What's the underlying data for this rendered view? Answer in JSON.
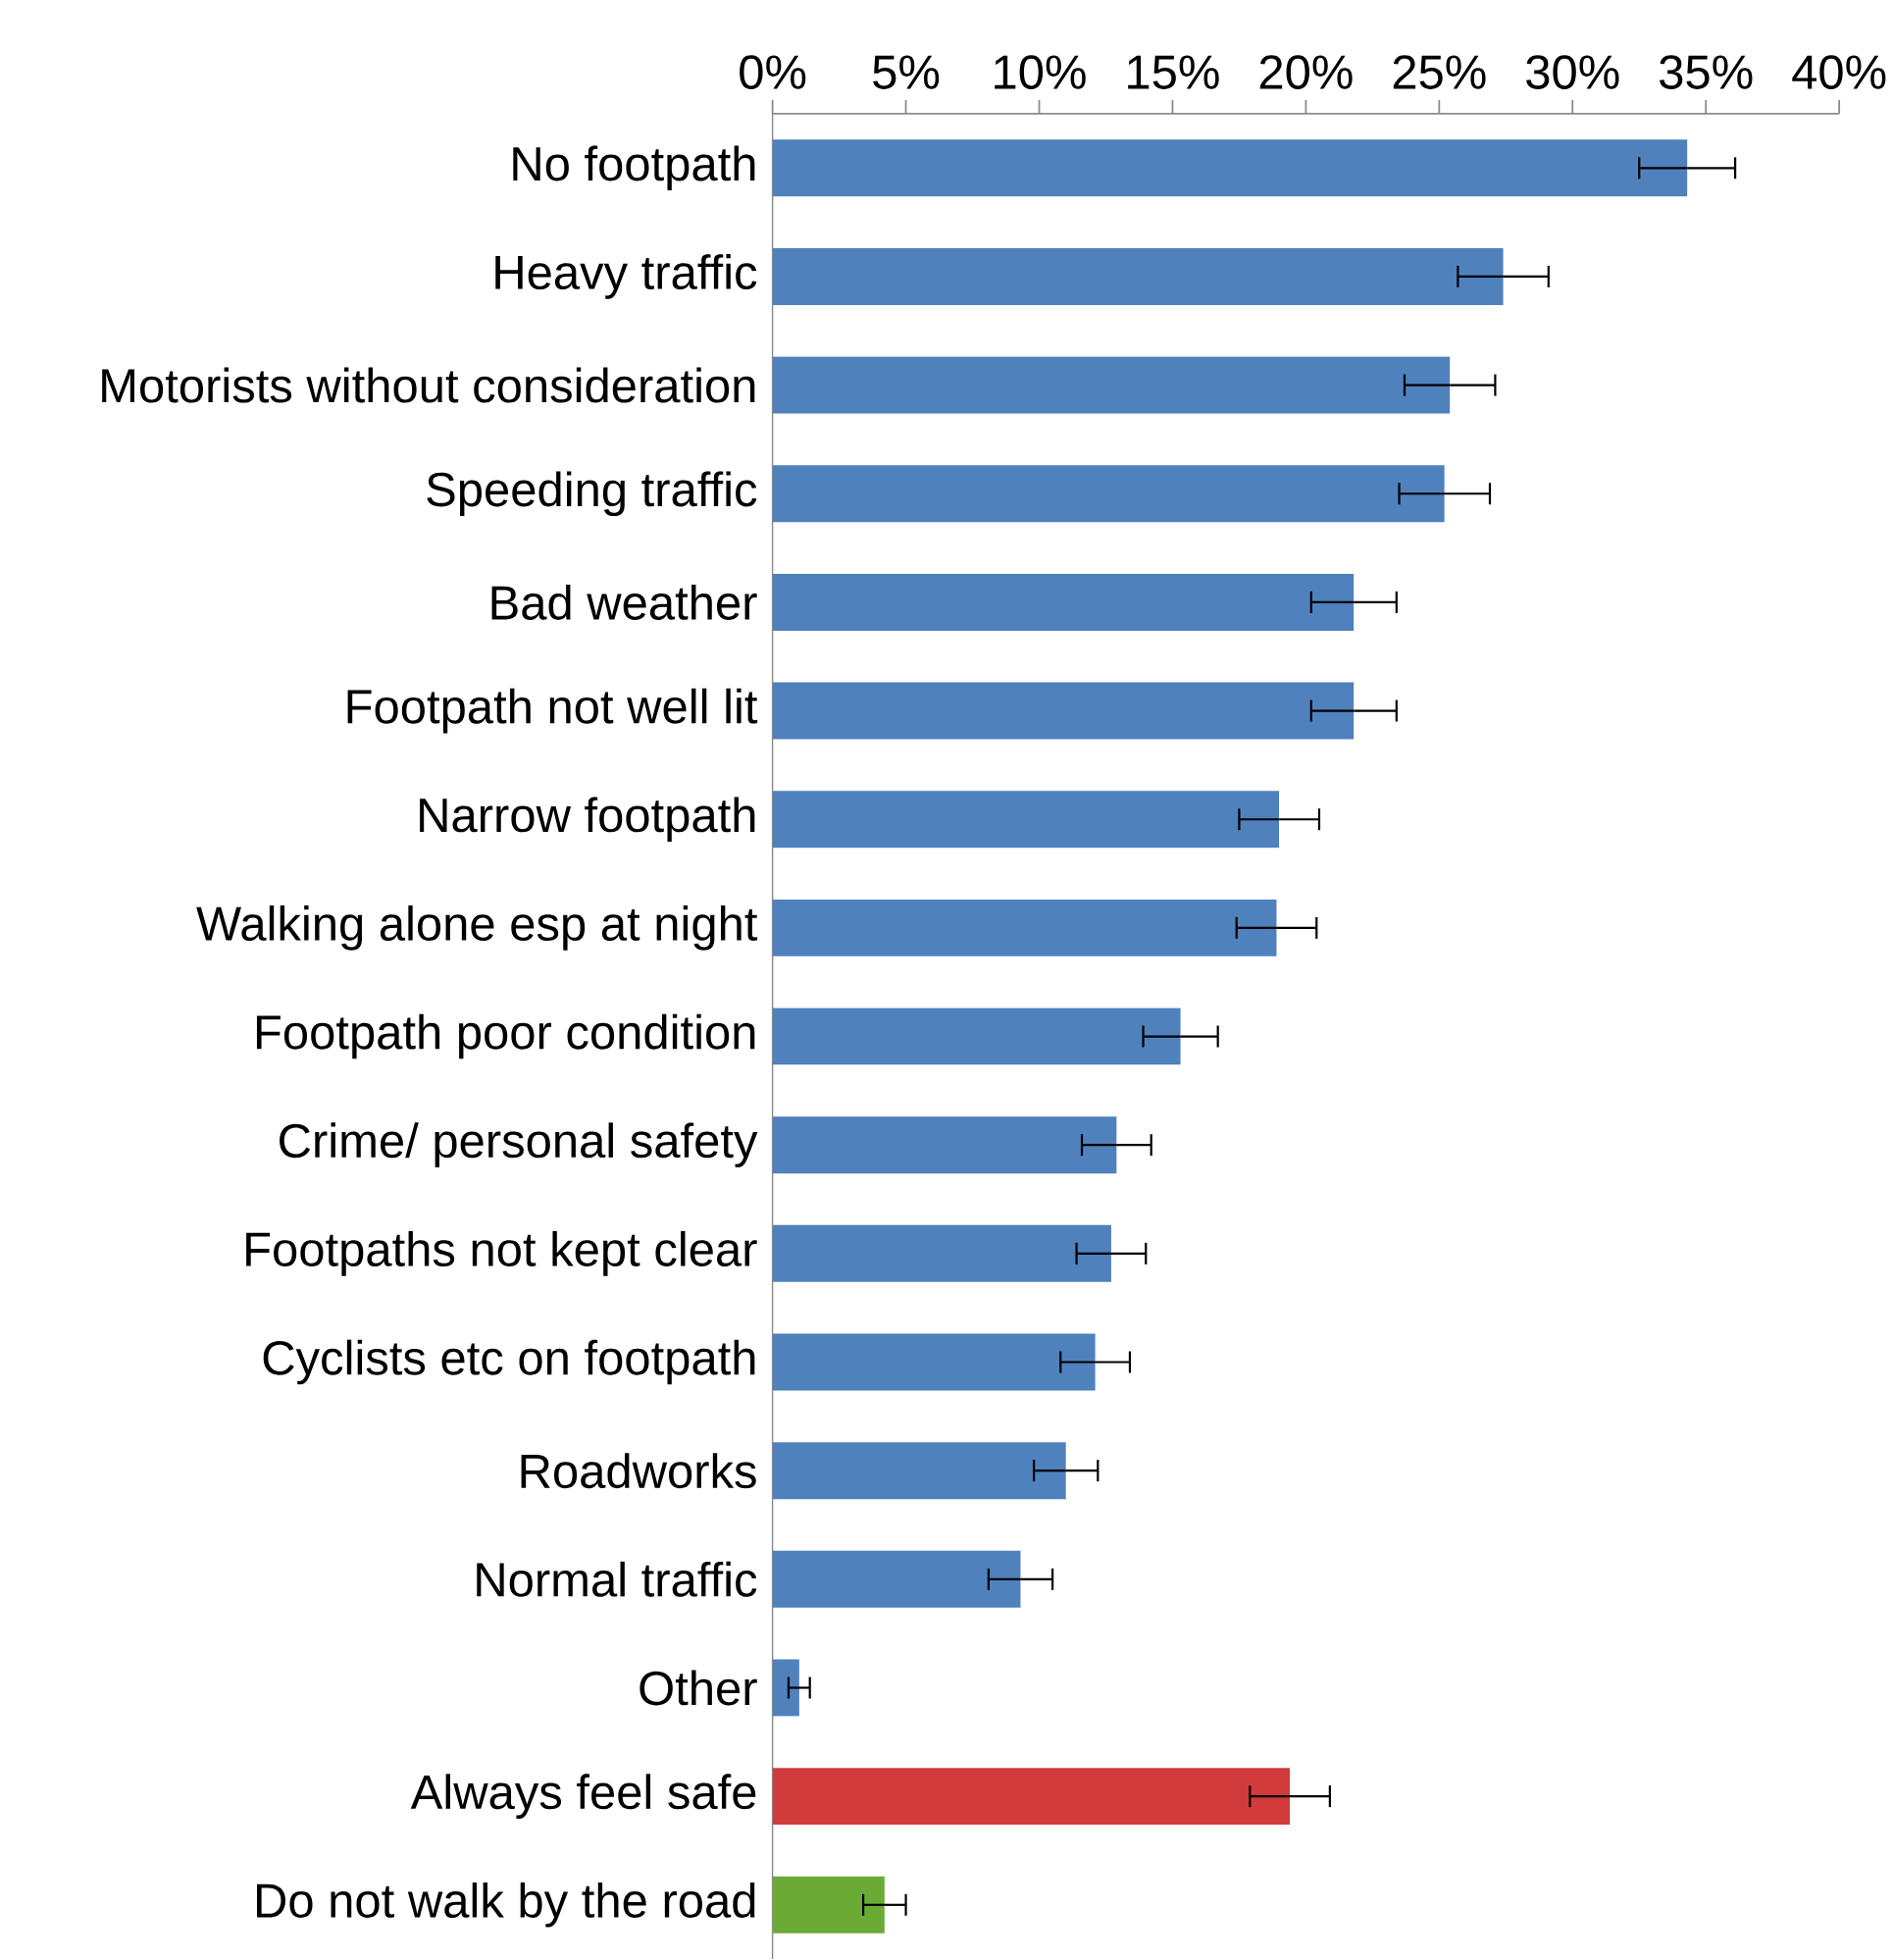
{
  "chart_data": {
    "type": "bar",
    "orientation": "horizontal",
    "categories": [
      "No footpath",
      "Heavy traffic",
      "Motorists without consideration",
      "Speeding traffic",
      "Bad weather",
      "Footpath not well lit",
      "Narrow footpath",
      "Walking alone esp at night",
      "Footpath poor condition",
      "Crime/ personal safety",
      "Footpaths not kept clear",
      "Cyclists etc on footpath",
      "Roadworks",
      "Normal traffic",
      "Other",
      "Always feel safe",
      "Do not walk by the road"
    ],
    "values": [
      34.3,
      27.4,
      25.4,
      25.2,
      21.8,
      21.8,
      19.0,
      18.9,
      15.3,
      12.9,
      12.7,
      12.1,
      11.0,
      9.3,
      1.0,
      19.4,
      4.2
    ],
    "errors": [
      1.8,
      1.7,
      1.7,
      1.7,
      1.6,
      1.6,
      1.5,
      1.5,
      1.4,
      1.3,
      1.3,
      1.3,
      1.2,
      1.2,
      0.4,
      1.5,
      0.8
    ],
    "colors": [
      "#4f81bd",
      "#4f81bd",
      "#4f81bd",
      "#4f81bd",
      "#4f81bd",
      "#4f81bd",
      "#4f81bd",
      "#4f81bd",
      "#4f81bd",
      "#4f81bd",
      "#4f81bd",
      "#4f81bd",
      "#4f81bd",
      "#4f81bd",
      "#4f81bd",
      "#d13b3c",
      "#6aab35"
    ],
    "xlim": [
      0,
      40
    ],
    "xticks": [
      {
        "value": 0,
        "label": "0%"
      },
      {
        "value": 5,
        "label": "5%"
      },
      {
        "value": 10,
        "label": "10%"
      },
      {
        "value": 15,
        "label": "15%"
      },
      {
        "value": 20,
        "label": "20%"
      },
      {
        "value": 25,
        "label": "25%"
      },
      {
        "value": 30,
        "label": "30%"
      },
      {
        "value": 35,
        "label": "35%"
      },
      {
        "value": 40,
        "label": "40%"
      }
    ],
    "grid": false
  }
}
